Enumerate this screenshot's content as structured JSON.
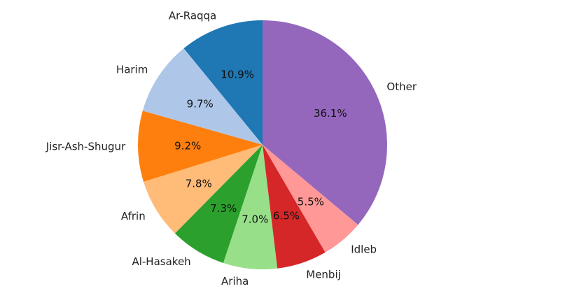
{
  "chart_data": {
    "type": "pie",
    "start_angle_deg": 90,
    "direction": "counterclockwise",
    "legend": "none",
    "slices": [
      {
        "label": "Ar-Raqqa",
        "value": 10.9,
        "pct_label": "10.9%",
        "color": "#1f77b4"
      },
      {
        "label": "Harim",
        "value": 9.7,
        "pct_label": "9.7%",
        "color": "#aec7e8"
      },
      {
        "label": "Jisr-Ash-Shugur",
        "value": 9.2,
        "pct_label": "9.2%",
        "color": "#ff7f0e"
      },
      {
        "label": "Afrin",
        "value": 7.8,
        "pct_label": "7.8%",
        "color": "#ffbb78"
      },
      {
        "label": "Al-Hasakeh",
        "value": 7.3,
        "pct_label": "7.3%",
        "color": "#2ca02c"
      },
      {
        "label": "Ariha",
        "value": 7.0,
        "pct_label": "7.0%",
        "color": "#98df8a"
      },
      {
        "label": "Menbij",
        "value": 6.5,
        "pct_label": "6.5%",
        "color": "#d62728"
      },
      {
        "label": "Idleb",
        "value": 5.5,
        "pct_label": "5.5%",
        "color": "#ff9896"
      },
      {
        "label": "Other",
        "value": 36.1,
        "pct_label": "36.1%",
        "color": "#9467bd"
      }
    ]
  }
}
